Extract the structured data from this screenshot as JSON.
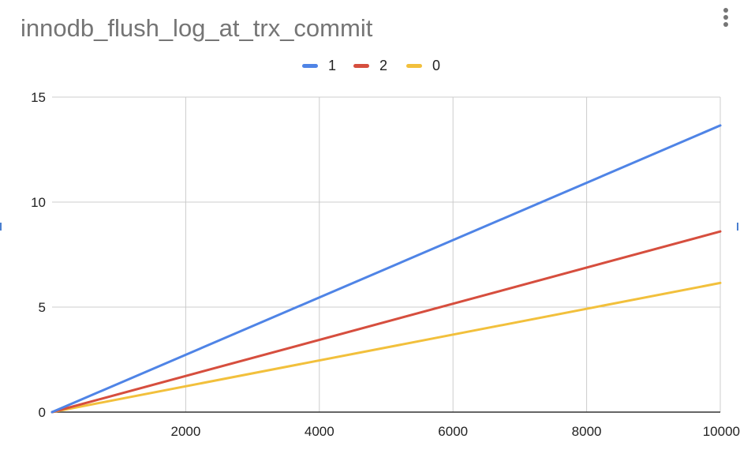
{
  "menu": {
    "icon": "more-vert-icon"
  },
  "chart_data": {
    "type": "line",
    "title": "innodb_flush_log_at_trx_commit",
    "xlabel": "",
    "ylabel": "",
    "xlim": [
      0,
      10000
    ],
    "ylim": [
      0,
      15
    ],
    "x_ticks": [
      2000,
      4000,
      6000,
      8000,
      10000
    ],
    "x_tick_labels": [
      "2000",
      "4000",
      "6000",
      "8000",
      "10000"
    ],
    "y_ticks": [
      0,
      5,
      10,
      15
    ],
    "y_tick_labels": [
      "0",
      "5",
      "10",
      "15"
    ],
    "grid": true,
    "legend_position": "top",
    "x": [
      0,
      10000
    ],
    "series": [
      {
        "name": "1",
        "color": "#4f84e6",
        "values": [
          0,
          13.65
        ]
      },
      {
        "name": "2",
        "color": "#d64e3e",
        "values": [
          0,
          8.6
        ]
      },
      {
        "name": "0",
        "color": "#f2c03c",
        "values": [
          0,
          6.15
        ]
      }
    ]
  }
}
